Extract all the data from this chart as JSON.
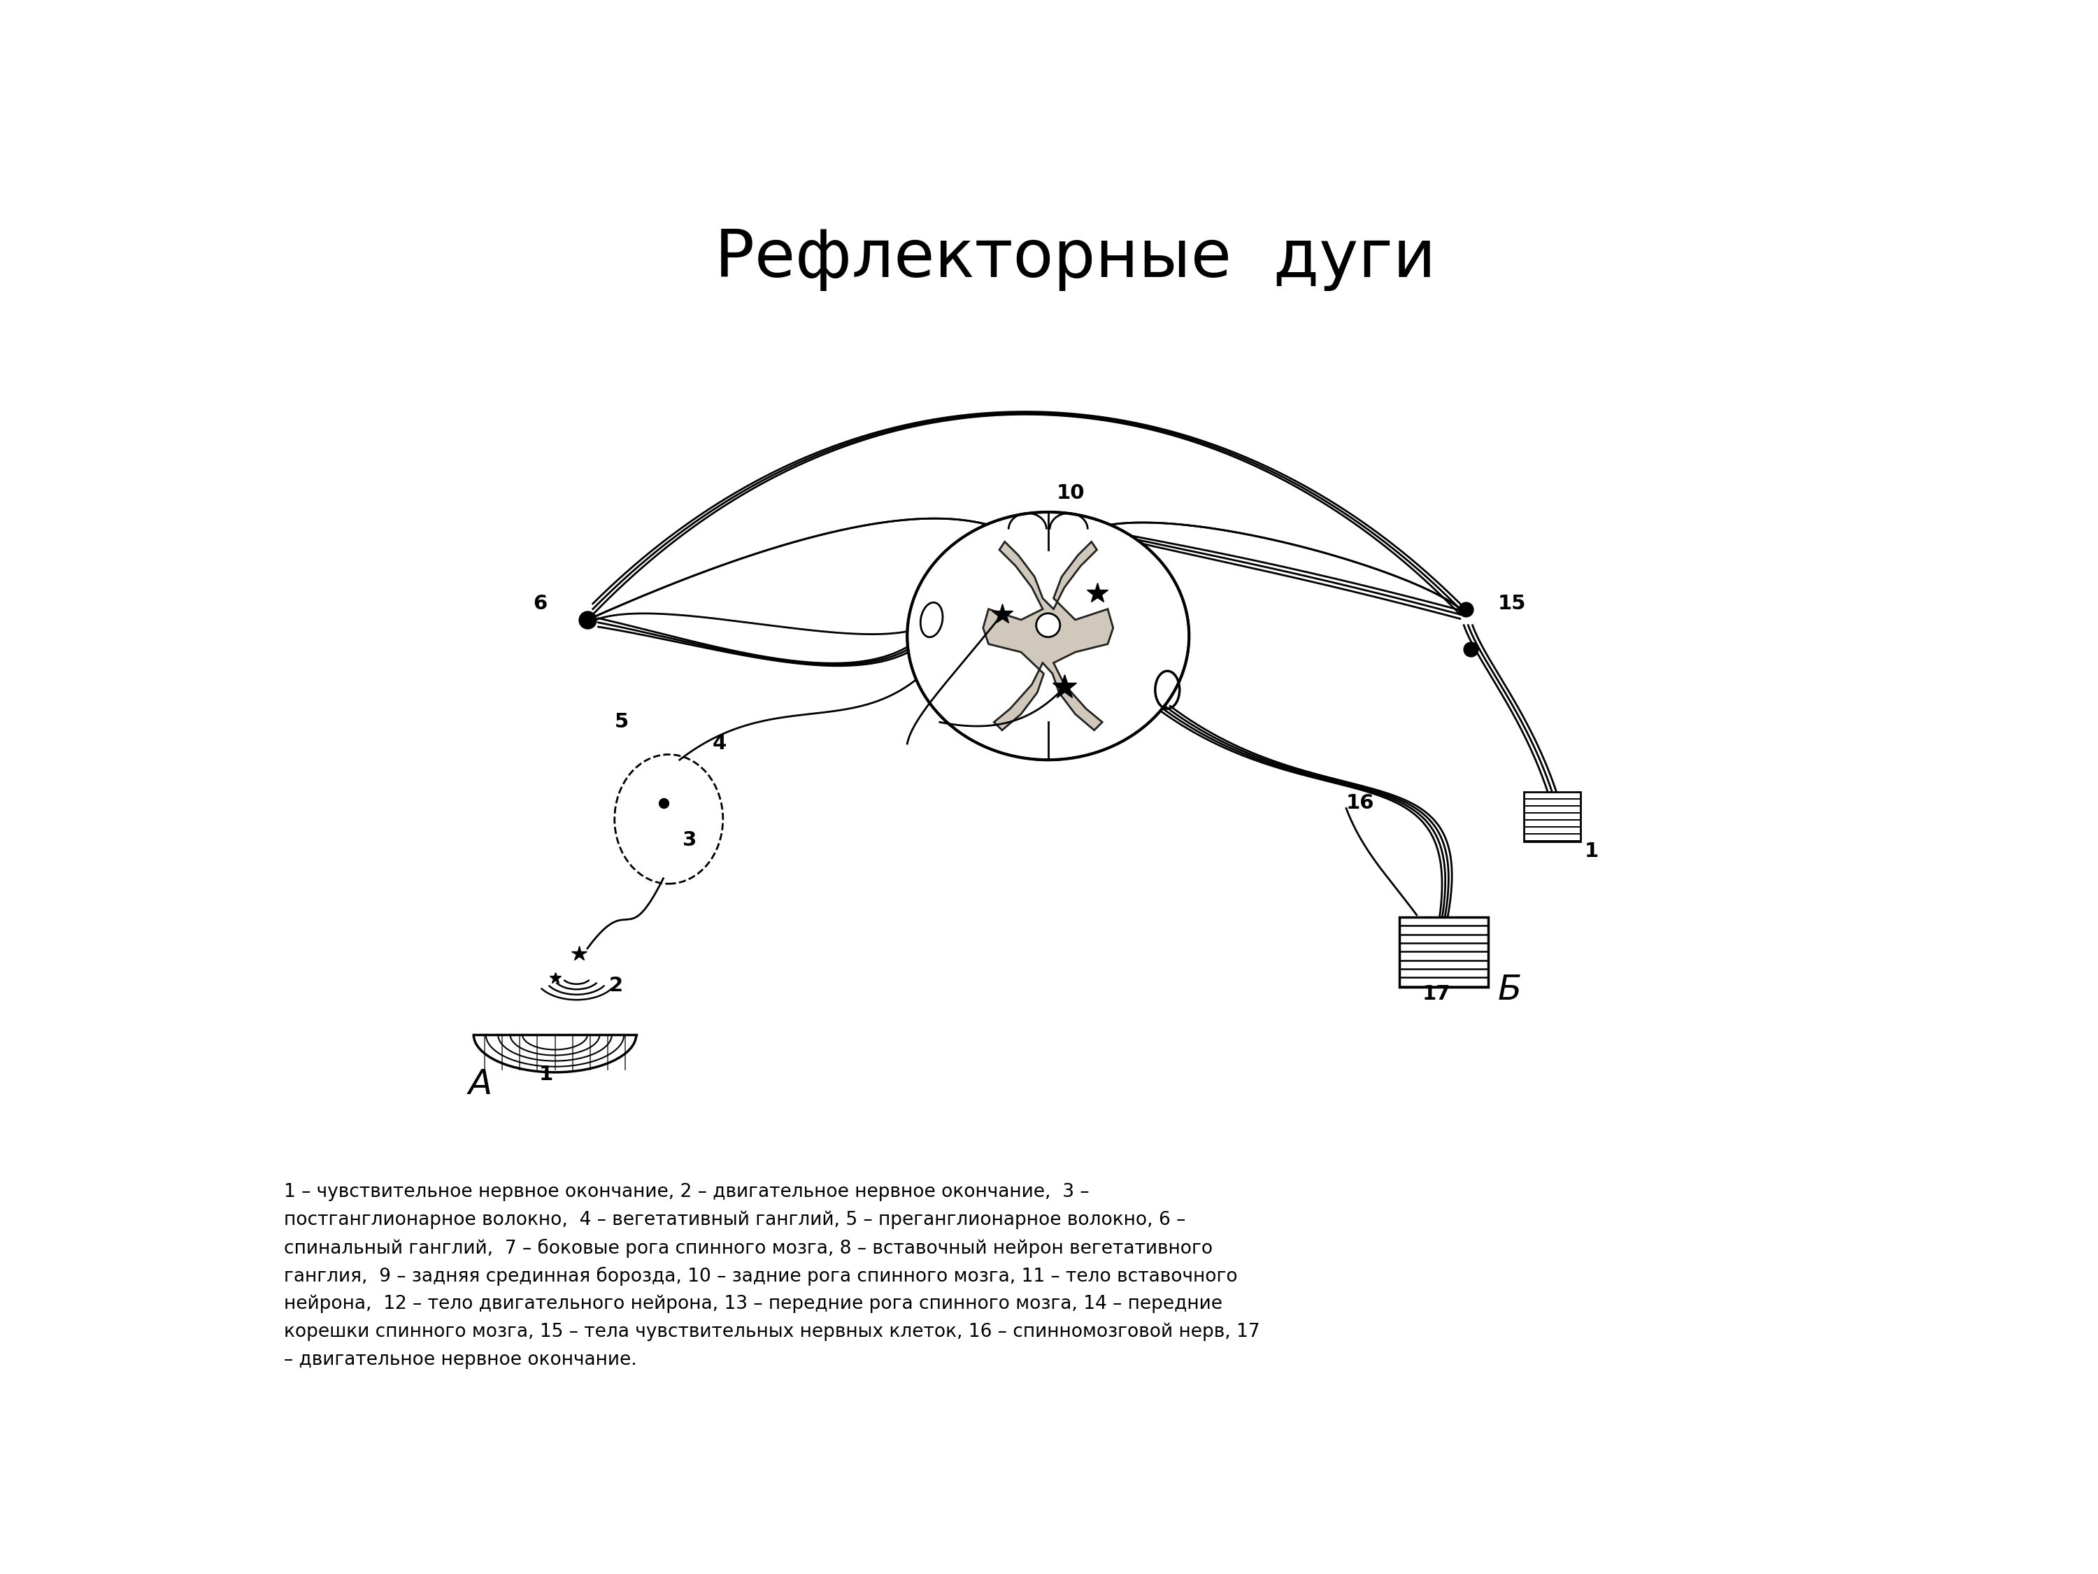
{
  "title": "Рефлекторные  дуги",
  "title_fontsize": 68,
  "bg_color": "#ffffff",
  "label_color": "#000000",
  "line_color": "#000000",
  "caption_line1": "1 – чувствительное нервное окончание, 2 – двигательное нервное окончание,  3 –",
  "caption_line2": "постганглионарное волокно,  4 – вегетативный ганглий, 5 – преганглионарное волокно, 6 –",
  "caption_line3": "спинальный ганглий,  7 – боковые рога спинного мозга, 8 – вставочный нейрон вегетативного",
  "caption_line4": "ганглия,  9 – задняя срединная борозда, 10 – задние рога спинного мозга, 11 – тело вставочного",
  "caption_line5": "нейрона,  12 – тело двигательного нейрона, 13 – передние рога спинного мозга, 14 – передние",
  "caption_line6": "корешки спинного мозга, 15 – тела чувствительных нервных клеток, 16 – спинномозговой нерв, 17",
  "caption_line7": "– двигательное нервное окончание.",
  "label_A": "А",
  "label_B": "Б"
}
